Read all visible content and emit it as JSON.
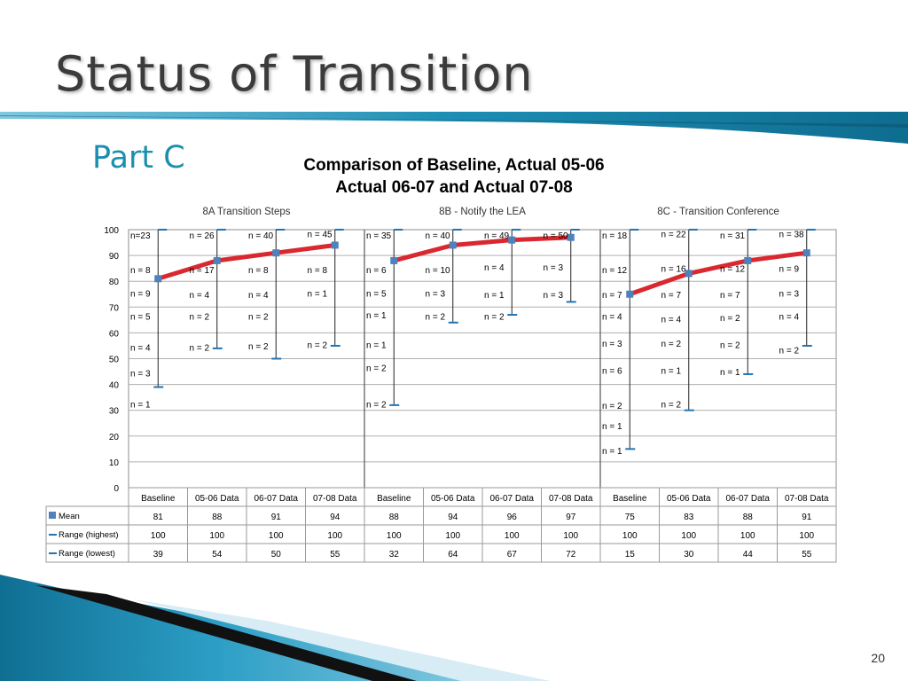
{
  "slide": {
    "title": "Status of Transition",
    "subtitle": "Part C",
    "page_number": "20"
  },
  "colors": {
    "accent": "#1a8fae",
    "mean_line": "#d9282f",
    "marker": "#4f81bd",
    "range": "#1f74b5"
  },
  "chart_data": {
    "type": "line",
    "title_lines": [
      "Comparison of Baseline, Actual 05-06",
      "Actual 06-07 and Actual 07-08"
    ],
    "ylim": [
      0,
      100
    ],
    "yticks": [
      "0",
      "10",
      "20",
      "30",
      "40",
      "50",
      "60",
      "70",
      "80",
      "90",
      "100"
    ],
    "grid": true,
    "groups": [
      "8A Transition Steps",
      "8B - Notify the LEA",
      "8C - Transition Conference"
    ],
    "categories": [
      "Baseline",
      "05-06 Data",
      "06-07 Data",
      "07-08 Data",
      "Baseline",
      "05-06 Data",
      "06-07 Data",
      "07-08 Data",
      "Baseline",
      "05-06 Data",
      "06-07 Data",
      "07-08 Data"
    ],
    "series": [
      {
        "name": "Mean",
        "values": [
          81,
          88,
          91,
          94,
          88,
          94,
          96,
          97,
          75,
          83,
          88,
          91
        ]
      },
      {
        "name": "Range (highest)",
        "values": [
          100,
          100,
          100,
          100,
          100,
          100,
          100,
          100,
          100,
          100,
          100,
          100
        ]
      },
      {
        "name": "Range (lowest)",
        "values": [
          39,
          54,
          50,
          55,
          32,
          64,
          67,
          72,
          15,
          30,
          44,
          55
        ]
      }
    ],
    "annotations": [
      {
        "text": "n=23",
        "x": 0,
        "y": 98
      },
      {
        "text": "n = 26",
        "x": 1,
        "y": 98
      },
      {
        "text": "n = 40",
        "x": 2,
        "y": 98
      },
      {
        "text": "n = 45",
        "x": 3,
        "y": 98.5
      },
      {
        "text": "n = 8",
        "x": 0,
        "y": 84.5
      },
      {
        "text": "n = 17",
        "x": 1,
        "y": 84.5
      },
      {
        "text": "n = 8",
        "x": 2,
        "y": 84.5
      },
      {
        "text": "n = 8",
        "x": 3,
        "y": 84.5
      },
      {
        "text": "n = 9",
        "x": 0,
        "y": 75.5
      },
      {
        "text": "n = 4",
        "x": 1,
        "y": 75
      },
      {
        "text": "n = 4",
        "x": 2,
        "y": 75
      },
      {
        "text": "n = 1",
        "x": 3,
        "y": 75.5
      },
      {
        "text": "n = 5",
        "x": 0,
        "y": 66.5
      },
      {
        "text": "n = 2",
        "x": 1,
        "y": 66.5
      },
      {
        "text": "n = 2",
        "x": 2,
        "y": 66.5
      },
      {
        "text": "n = 4",
        "x": 0,
        "y": 54.5
      },
      {
        "text": "n = 2",
        "x": 1,
        "y": 54.5
      },
      {
        "text": "n = 2",
        "x": 2,
        "y": 55
      },
      {
        "text": "n = 2",
        "x": 3,
        "y": 55.5
      },
      {
        "text": "n = 3",
        "x": 0,
        "y": 44.5
      },
      {
        "text": "n = 1",
        "x": 0,
        "y": 32.5
      },
      {
        "text": "n = 35",
        "x": 4,
        "y": 98
      },
      {
        "text": "n = 40",
        "x": 5,
        "y": 98
      },
      {
        "text": "n = 49",
        "x": 6,
        "y": 98
      },
      {
        "text": "n = 50",
        "x": 7,
        "y": 98
      },
      {
        "text": "n = 6",
        "x": 4,
        "y": 84.5
      },
      {
        "text": "n = 10",
        "x": 5,
        "y": 84.5
      },
      {
        "text": "n = 4",
        "x": 6,
        "y": 85.5
      },
      {
        "text": "n = 3",
        "x": 7,
        "y": 85.5
      },
      {
        "text": "n = 5",
        "x": 4,
        "y": 75.5
      },
      {
        "text": "n = 3",
        "x": 5,
        "y": 75.5
      },
      {
        "text": "n = 1",
        "x": 6,
        "y": 75
      },
      {
        "text": "n = 3",
        "x": 7,
        "y": 75
      },
      {
        "text": "n = 1",
        "x": 4,
        "y": 67
      },
      {
        "text": "n = 2",
        "x": 5,
        "y": 66.5
      },
      {
        "text": "n = 2",
        "x": 6,
        "y": 66.5
      },
      {
        "text": "n = 1",
        "x": 4,
        "y": 55.5
      },
      {
        "text": "n = 2",
        "x": 4,
        "y": 46.5
      },
      {
        "text": "n = 2",
        "x": 4,
        "y": 32.5
      },
      {
        "text": "n = 18",
        "x": 8,
        "y": 98
      },
      {
        "text": "n = 22",
        "x": 9,
        "y": 98.5
      },
      {
        "text": "n = 31",
        "x": 10,
        "y": 98
      },
      {
        "text": "n = 38",
        "x": 11,
        "y": 98.5
      },
      {
        "text": "n = 12",
        "x": 8,
        "y": 84.5
      },
      {
        "text": "n = 16",
        "x": 9,
        "y": 85
      },
      {
        "text": "n = 12",
        "x": 10,
        "y": 85
      },
      {
        "text": "n = 9",
        "x": 11,
        "y": 85
      },
      {
        "text": "n = 7",
        "x": 8,
        "y": 75
      },
      {
        "text": "n = 7",
        "x": 9,
        "y": 75
      },
      {
        "text": "n = 7",
        "x": 10,
        "y": 75
      },
      {
        "text": "n = 3",
        "x": 11,
        "y": 75.5
      },
      {
        "text": "n = 4",
        "x": 8,
        "y": 66.5
      },
      {
        "text": "n = 4",
        "x": 9,
        "y": 65.5
      },
      {
        "text": "n = 2",
        "x": 10,
        "y": 66
      },
      {
        "text": "n = 4",
        "x": 11,
        "y": 66.5
      },
      {
        "text": "n = 3",
        "x": 8,
        "y": 56
      },
      {
        "text": "n = 2",
        "x": 9,
        "y": 56
      },
      {
        "text": "n = 2",
        "x": 10,
        "y": 55.5
      },
      {
        "text": "n = 2",
        "x": 11,
        "y": 53.5
      },
      {
        "text": "n = 6",
        "x": 8,
        "y": 45.5
      },
      {
        "text": "n = 1",
        "x": 9,
        "y": 45.5
      },
      {
        "text": "n = 1",
        "x": 10,
        "y": 45
      },
      {
        "text": "n = 2",
        "x": 8,
        "y": 32
      },
      {
        "text": "n = 2",
        "x": 9,
        "y": 32.5
      },
      {
        "text": "n = 1",
        "x": 8,
        "y": 24
      },
      {
        "text": "n = 1",
        "x": 8,
        "y": 14.5
      }
    ],
    "table": {
      "rows": [
        "Mean",
        "Range (highest)",
        "Range (lowest)"
      ]
    }
  }
}
